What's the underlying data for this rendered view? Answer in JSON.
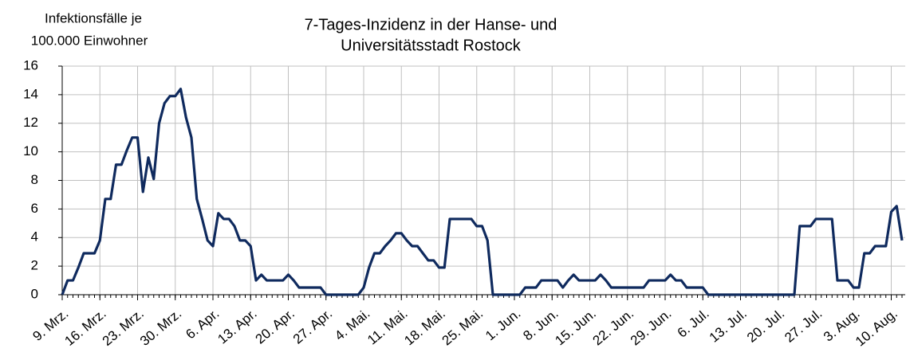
{
  "chart_data": {
    "type": "line",
    "title": [
      "7-Tages-Inzidenz in der Hanse- und",
      "Universitätsstadt Rostock"
    ],
    "y_label": [
      "Infektionsfälle je",
      "100.000 Einwohner"
    ],
    "categories": [
      "9. Mrz.",
      null,
      null,
      null,
      null,
      null,
      null,
      "16. Mrz.",
      null,
      null,
      null,
      null,
      null,
      null,
      "23. Mrz.",
      null,
      null,
      null,
      null,
      null,
      null,
      "30. Mrz.",
      null,
      null,
      null,
      null,
      null,
      null,
      "6. Apr.",
      null,
      null,
      null,
      null,
      null,
      null,
      "13. Apr.",
      null,
      null,
      null,
      null,
      null,
      null,
      "20. Apr.",
      null,
      null,
      null,
      null,
      null,
      null,
      "27. Apr.",
      null,
      null,
      null,
      null,
      null,
      null,
      "4. Mai.",
      null,
      null,
      null,
      null,
      null,
      null,
      "11. Mai.",
      null,
      null,
      null,
      null,
      null,
      null,
      "18. Mai.",
      null,
      null,
      null,
      null,
      null,
      null,
      "25. Mai.",
      null,
      null,
      null,
      null,
      null,
      null,
      "1. Jun.",
      null,
      null,
      null,
      null,
      null,
      null,
      "8. Jun.",
      null,
      null,
      null,
      null,
      null,
      null,
      "15. Jun.",
      null,
      null,
      null,
      null,
      null,
      null,
      "22. Jun.",
      null,
      null,
      null,
      null,
      null,
      null,
      "29. Jun.",
      null,
      null,
      null,
      null,
      null,
      null,
      "6. Jul.",
      null,
      null,
      null,
      null,
      null,
      null,
      "13. Jul.",
      null,
      null,
      null,
      null,
      null,
      null,
      "20. Jul.",
      null,
      null,
      null,
      null,
      null,
      null,
      "27. Jul.",
      null,
      null,
      null,
      null,
      null,
      null,
      "3. Aug.",
      null,
      null,
      null,
      null,
      null,
      null,
      "10. Aug.",
      null,
      null
    ],
    "series": [
      {
        "name": "7-Tages-Inzidenz",
        "color": "#0f2a5e",
        "values": [
          0,
          1,
          1,
          1.9,
          2.9,
          2.9,
          2.9,
          3.8,
          6.7,
          6.7,
          9.1,
          9.1,
          10.1,
          11,
          11,
          7.2,
          9.6,
          8.1,
          12,
          13.4,
          13.9,
          13.9,
          14.4,
          12.4,
          11,
          6.7,
          5.3,
          3.8,
          3.4,
          5.7,
          5.3,
          5.3,
          4.8,
          3.8,
          3.8,
          3.4,
          1,
          1.4,
          1,
          1,
          1,
          1,
          1.4,
          1,
          0.5,
          0.5,
          0.5,
          0.5,
          0.5,
          0,
          0,
          0,
          0,
          0,
          0,
          0,
          0.5,
          1.9,
          2.9,
          2.9,
          3.4,
          3.8,
          4.3,
          4.3,
          3.8,
          3.4,
          3.4,
          2.9,
          2.4,
          2.4,
          1.9,
          1.9,
          5.3,
          5.3,
          5.3,
          5.3,
          5.3,
          4.8,
          4.8,
          3.8,
          0,
          0,
          0,
          0,
          0,
          0,
          0.5,
          0.5,
          0.5,
          1,
          1,
          1,
          1,
          0.5,
          1,
          1.4,
          1,
          1,
          1,
          1,
          1.4,
          1,
          0.5,
          0.5,
          0.5,
          0.5,
          0.5,
          0.5,
          0.5,
          1,
          1,
          1,
          1,
          1.4,
          1,
          1,
          0.5,
          0.5,
          0.5,
          0.5,
          0,
          0,
          0,
          0,
          0,
          0,
          0,
          0,
          0,
          0,
          0,
          0,
          0,
          0,
          0,
          0,
          0,
          4.8,
          4.8,
          4.8,
          5.3,
          5.3,
          5.3,
          5.3,
          1,
          1,
          1,
          0.5,
          0.5,
          2.9,
          2.9,
          3.4,
          3.4,
          3.4,
          5.8,
          6.2,
          3.8
        ]
      }
    ],
    "ylim": [
      0,
      16
    ],
    "yticks": [
      0,
      2,
      4,
      6,
      8,
      10,
      12,
      14,
      16
    ],
    "grid": true
  }
}
